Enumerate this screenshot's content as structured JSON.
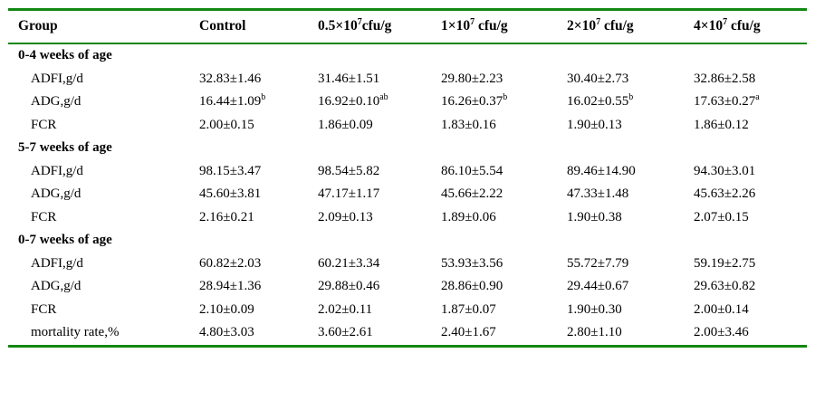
{
  "colors": {
    "rule": "#128712",
    "text": "#000000",
    "background": "#ffffff"
  },
  "table": {
    "columns": [
      "Group",
      "Control",
      "0.5×10^{7}cfu/g",
      "1×10^{7} cfu/g",
      "2×10^{7} cfu/g",
      "4×10^{7} cfu/g"
    ],
    "rows": [
      {
        "type": "section",
        "label": "0-4 weeks of age",
        "values": [
          "",
          "",
          "",
          "",
          ""
        ]
      },
      {
        "type": "data",
        "label": "ADFI,g/d",
        "values": [
          "32.83±1.46",
          "31.46±1.51",
          "29.80±2.23",
          "30.40±2.73",
          "32.86±2.58"
        ]
      },
      {
        "type": "data",
        "label": "ADG,g/d",
        "values": [
          "16.44±1.09^{b}",
          "16.92±0.10^{ab}",
          "16.26±0.37^{b}",
          "16.02±0.55^{b}",
          "17.63±0.27^{a}"
        ]
      },
      {
        "type": "data",
        "label": "FCR",
        "values": [
          "2.00±0.15",
          "1.86±0.09",
          "1.83±0.16",
          "1.90±0.13",
          "1.86±0.12"
        ]
      },
      {
        "type": "section",
        "label": "5-7 weeks of age",
        "values": [
          "",
          "",
          "",
          "",
          ""
        ]
      },
      {
        "type": "data",
        "label": "ADFI,g/d",
        "values": [
          "98.15±3.47",
          "98.54±5.82",
          "86.10±5.54",
          "89.46±14.90",
          "94.30±3.01"
        ]
      },
      {
        "type": "data",
        "label": "ADG,g/d",
        "values": [
          "45.60±3.81",
          "47.17±1.17",
          "45.66±2.22",
          "47.33±1.48",
          "45.63±2.26"
        ]
      },
      {
        "type": "data",
        "label": "FCR",
        "values": [
          "2.16±0.21",
          "2.09±0.13",
          "1.89±0.06",
          "1.90±0.38",
          "2.07±0.15"
        ]
      },
      {
        "type": "section",
        "label": "0-7 weeks of age",
        "values": [
          "",
          "",
          "",
          "",
          ""
        ]
      },
      {
        "type": "data",
        "label": "ADFI,g/d",
        "values": [
          "60.82±2.03",
          "60.21±3.34",
          "53.93±3.56",
          "55.72±7.79",
          "59.19±2.75"
        ]
      },
      {
        "type": "data",
        "label": "ADG,g/d",
        "values": [
          "28.94±1.36",
          "29.88±0.46",
          "28.86±0.90",
          "29.44±0.67",
          "29.63±0.82"
        ]
      },
      {
        "type": "data",
        "label": "FCR",
        "values": [
          "2.10±0.09",
          "2.02±0.11",
          "1.87±0.07",
          "1.90±0.30",
          "2.00±0.14"
        ]
      },
      {
        "type": "data",
        "label": "mortality rate,%",
        "values": [
          "4.80±3.03",
          "3.60±2.61",
          "2.40±1.67",
          "2.80±1.10",
          "2.00±3.46"
        ]
      }
    ]
  }
}
